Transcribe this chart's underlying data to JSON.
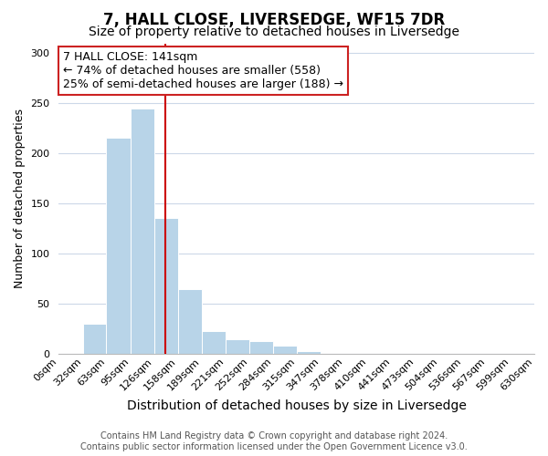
{
  "title": "7, HALL CLOSE, LIVERSEDGE, WF15 7DR",
  "subtitle": "Size of property relative to detached houses in Liversedge",
  "xlabel": "Distribution of detached houses by size in Liversedge",
  "ylabel": "Number of detached properties",
  "bin_labels": [
    "0sqm",
    "32sqm",
    "63sqm",
    "95sqm",
    "126sqm",
    "158sqm",
    "189sqm",
    "221sqm",
    "252sqm",
    "284sqm",
    "315sqm",
    "347sqm",
    "378sqm",
    "410sqm",
    "441sqm",
    "473sqm",
    "504sqm",
    "536sqm",
    "567sqm",
    "599sqm",
    "630sqm"
  ],
  "bin_edges": [
    0,
    32,
    63,
    95,
    126,
    158,
    189,
    221,
    252,
    284,
    315,
    347,
    378,
    410,
    441,
    473,
    504,
    536,
    567,
    599,
    630
  ],
  "bar_heights": [
    0,
    30,
    216,
    245,
    136,
    65,
    23,
    15,
    13,
    9,
    3,
    0,
    0,
    0,
    0,
    0,
    0,
    0,
    0,
    0
  ],
  "bar_color": "#b8d4e8",
  "vline_x": 141,
  "vline_color": "#cc0000",
  "ylim": [
    0,
    310
  ],
  "yticks": [
    0,
    50,
    100,
    150,
    200,
    250,
    300
  ],
  "ann_line1": "7 HALL CLOSE: 141sqm",
  "ann_line2": "← 74% of detached houses are smaller (558)",
  "ann_line3": "25% of semi-detached houses are larger (188) →",
  "footer_line1": "Contains HM Land Registry data © Crown copyright and database right 2024.",
  "footer_line2": "Contains public sector information licensed under the Open Government Licence v3.0.",
  "background_color": "#ffffff",
  "grid_color": "#ccd8e8",
  "title_fontsize": 12,
  "subtitle_fontsize": 10,
  "xlabel_fontsize": 10,
  "ylabel_fontsize": 9,
  "tick_fontsize": 8,
  "ann_fontsize": 9,
  "footer_fontsize": 7
}
